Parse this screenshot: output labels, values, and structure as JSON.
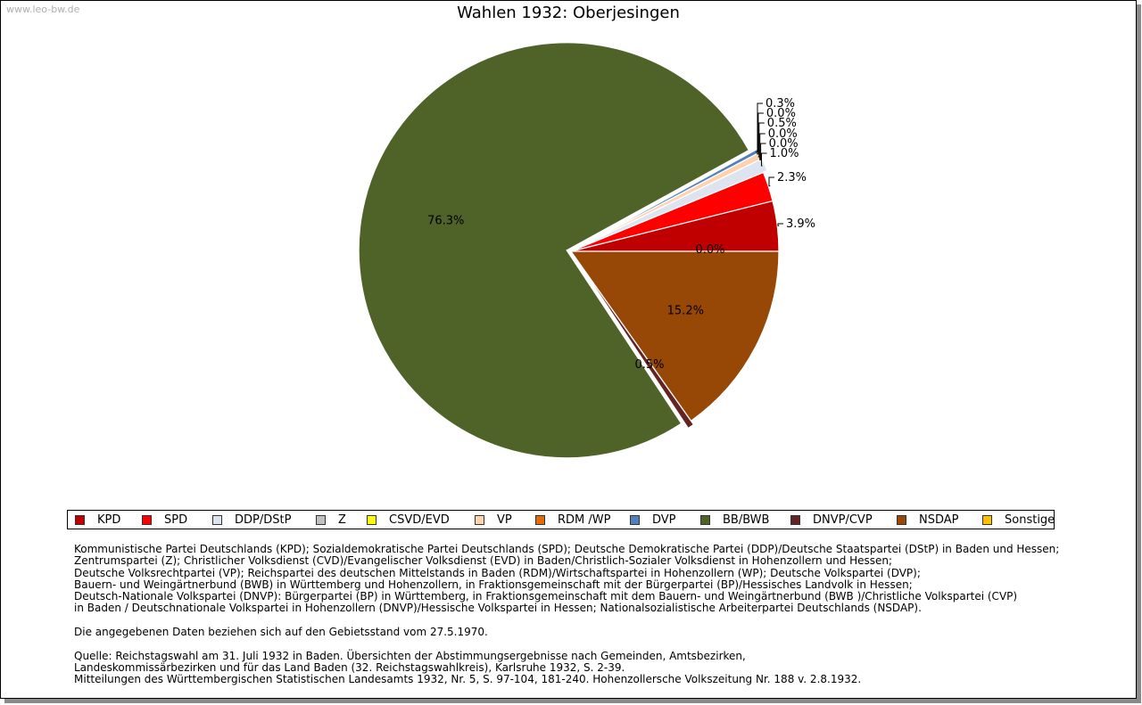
{
  "watermark": "www.leo-bw.de",
  "chart_data": {
    "type": "pie",
    "title": "Wahlen 1932: Oberjesingen",
    "slices": [
      {
        "name": "KPD",
        "value": 3.9,
        "label": "3.9%",
        "color": "#c00000"
      },
      {
        "name": "SPD",
        "value": 2.3,
        "label": "2.3%",
        "color": "#ff0000"
      },
      {
        "name": "DDP/DStP",
        "value": 1.0,
        "label": "1.0%",
        "color": "#dde4f0"
      },
      {
        "name": "Z",
        "value": 0.0,
        "label": "0.0%",
        "color": "#c0c0c0"
      },
      {
        "name": "CSVD/EVD",
        "value": 0.0,
        "label": "0.0%",
        "color": "#ffff00"
      },
      {
        "name": "VP",
        "value": 0.5,
        "label": "0.5%",
        "color": "#ffd2b0"
      },
      {
        "name": "RDM /WP",
        "value": 0.0,
        "label": "0.0%",
        "color": "#e36c0a"
      },
      {
        "name": "DVP",
        "value": 0.3,
        "label": "0.3%",
        "color": "#4f81bd"
      },
      {
        "name": "BB/BWB",
        "value": 76.3,
        "label": "76.3%",
        "color": "#4f6228"
      },
      {
        "name": "DNVP/CVP",
        "value": 0.5,
        "label": "0.5%",
        "color": "#632423"
      },
      {
        "name": "NSDAP",
        "value": 15.2,
        "label": "15.2%",
        "color": "#974806"
      },
      {
        "name": "Sonstige",
        "value": 0.0,
        "label": "0.0%",
        "color": "#ffc000"
      }
    ],
    "legend_position": "bottom"
  },
  "notes": {
    "lines": [
      "Kommunistische Partei Deutschlands (KPD); Sozialdemokratische Partei Deutschlands (SPD); Deutsche Demokratische Partei (DDP)/Deutsche Staatspartei (DStP) in Baden und Hessen;",
      "Zentrumspartei (Z); Christlicher Volksdienst (CVD)/Evangelischer Volksdienst (EVD) in Baden/Christlich-Sozialer Volksdienst in Hohenzollern und Hessen;",
      "Deutsche Volksrechtpartei (VP); Reichspartei des deutschen Mittelstands in Baden (RDM)/Wirtschaftspartei in Hohenzollern (WP); Deutsche Volkspartei (DVP);",
      "Bauern- und Weingärtnerbund (BWB) in Württemberg und Hohenzollern, in Fraktionsgemeinschaft mit der Bürgerpartei (BP)/Hessisches Landvolk in Hessen;",
      "Deutsch-Nationale Volkspartei (DNVP): Bürgerpartei (BP) in Württemberg, in Fraktionsgemeinschaft mit dem Bauern- und Weingärtnerbund (BWB )/Christliche Volkspartei (CVP)",
      "in Baden / Deutschnationale Volkspartei in Hohenzollern (DNVP)/Hessische Volkspartei in Hessen; Nationalsozialistische Arbeiterpartei Deutschlands (NSDAP).",
      "",
      "Die angegebenen Daten beziehen sich auf den Gebietsstand vom 27.5.1970.",
      "",
      "Quelle: Reichstagswahl am 31. Juli 1932 in Baden. Übersichten der Abstimmungsergebnisse nach Gemeinden, Amtsbezirken,",
      "Landeskommissärbezirken und für das Land Baden (32. Reichstagswahlkreis), Karlsruhe 1932, S. 2-39.",
      "Mitteilungen des Württembergischen Statistischen Landesamts 1932, Nr. 5, S. 97-104, 181-240. Hohenzollersche Volkszeitung Nr. 188 v. 2.8.1932."
    ]
  }
}
